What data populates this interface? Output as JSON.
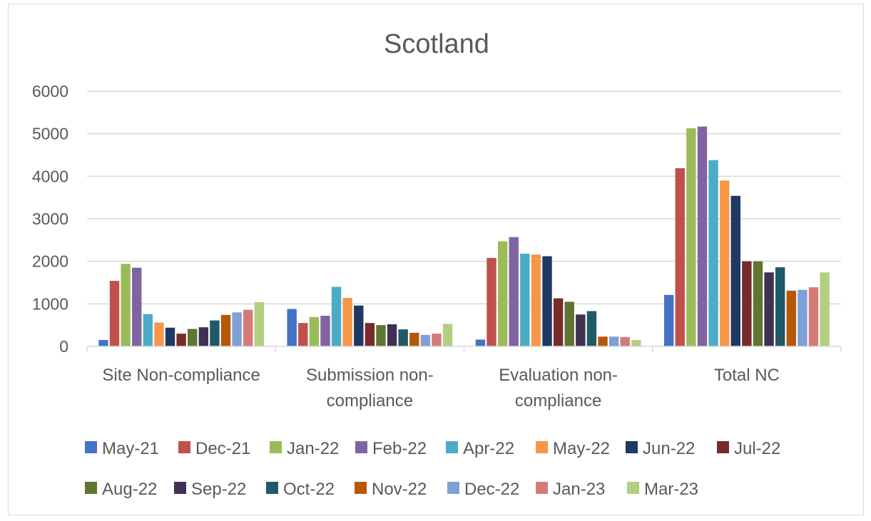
{
  "chart_data": {
    "type": "bar",
    "title": "Scotland",
    "xlabel": "",
    "ylabel": "",
    "ylim": [
      0,
      6000
    ],
    "yticks": [
      0,
      1000,
      2000,
      3000,
      4000,
      5000,
      6000
    ],
    "grid": true,
    "legend_position": "bottom",
    "categories": [
      [
        "Site Non-compliance"
      ],
      [
        "Submission non-",
        "compliance"
      ],
      [
        "Evaluation non-",
        "compliance"
      ],
      [
        "Total NC"
      ]
    ],
    "series": [
      {
        "name": "May-21",
        "color": "#4472C4",
        "values": [
          150,
          880,
          160,
          1210
        ]
      },
      {
        "name": "Dec-21",
        "color": "#C0504D",
        "values": [
          1540,
          550,
          2080,
          4190
        ]
      },
      {
        "name": "Jan-22",
        "color": "#9BBB59",
        "values": [
          1940,
          690,
          2470,
          5130
        ]
      },
      {
        "name": "Feb-22",
        "color": "#8064A2",
        "values": [
          1850,
          720,
          2570,
          5170
        ]
      },
      {
        "name": "Apr-22",
        "color": "#4BACC6",
        "values": [
          760,
          1400,
          2180,
          4380
        ]
      },
      {
        "name": "May-22",
        "color": "#F79646",
        "values": [
          560,
          1140,
          2160,
          3900
        ]
      },
      {
        "name": "Jun-22",
        "color": "#1F3864",
        "values": [
          440,
          960,
          2120,
          3540
        ]
      },
      {
        "name": "Jul-22",
        "color": "#772C2A",
        "values": [
          300,
          550,
          1130,
          2000
        ]
      },
      {
        "name": "Aug-22",
        "color": "#5F7530",
        "values": [
          410,
          500,
          1050,
          2000
        ]
      },
      {
        "name": "Sep-22",
        "color": "#403152",
        "values": [
          450,
          520,
          750,
          1740
        ]
      },
      {
        "name": "Oct-22",
        "color": "#215968",
        "values": [
          610,
          400,
          830,
          1860
        ]
      },
      {
        "name": "Nov-22",
        "color": "#B65708",
        "values": [
          740,
          320,
          230,
          1310
        ]
      },
      {
        "name": "Dec-22",
        "color": "#7FA0D6",
        "values": [
          800,
          270,
          230,
          1330
        ]
      },
      {
        "name": "Jan-23",
        "color": "#D47B79",
        "values": [
          860,
          300,
          220,
          1390
        ]
      },
      {
        "name": "Mar-23",
        "color": "#B3CF80",
        "values": [
          1040,
          530,
          150,
          1740
        ]
      }
    ]
  }
}
